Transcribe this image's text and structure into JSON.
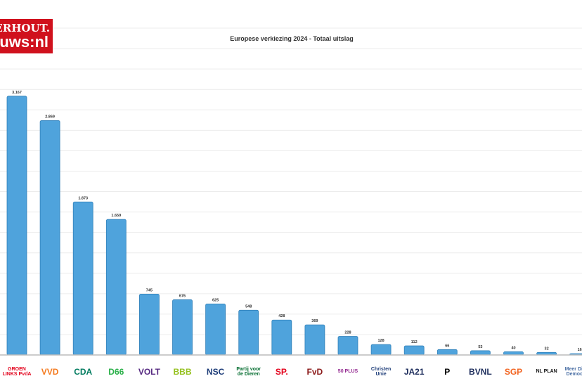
{
  "brand": {
    "line1": "ERHOUT.",
    "line2": "uws:nl",
    "color": "#d0111d"
  },
  "chart_data": {
    "type": "bar",
    "title": "Europese verkiezing 2024 - Totaal uitslag",
    "categories": [
      "GroenLinks-PvdA",
      "VVD",
      "CDA",
      "D66",
      "Volt",
      "BBB",
      "NSC",
      "Partij voor de Dieren",
      "SP",
      "Forum voor Democratie",
      "50PLUS",
      "ChristenUnie",
      "JA21",
      "Piratenpartij",
      "BVNL",
      "SGP",
      "NL Plan",
      "Meer Directe Democratie"
    ],
    "values": [
      3167,
      2869,
      1873,
      1659,
      745,
      676,
      625,
      548,
      428,
      369,
      228,
      128,
      112,
      66,
      53,
      40,
      32,
      16
    ],
    "labels": [
      "3.167",
      "2.869",
      "1.873",
      "1.659",
      "745",
      "676",
      "625",
      "548",
      "428",
      "369",
      "228",
      "128",
      "112",
      "66",
      "53",
      "40",
      "32",
      "16"
    ],
    "ylim": [
      0,
      4000
    ],
    "ytick_step": 250,
    "grid": true,
    "bar_color": "#4fa3dc",
    "xlabel": "",
    "ylabel": ""
  },
  "logos": [
    {
      "text": "GROEN LINKS PvdA",
      "color": "#e2001a"
    },
    {
      "text": "VVD",
      "color": "#f47b20"
    },
    {
      "text": "CDA",
      "color": "#007b5f"
    },
    {
      "text": "D66",
      "color": "#2bb04a"
    },
    {
      "text": "VOLT",
      "color": "#582c83"
    },
    {
      "text": "BBB",
      "color": "#95c11f"
    },
    {
      "text": "NSC",
      "color": "#1d3c78"
    },
    {
      "text": "Partij voor de Dieren",
      "color": "#006b2d"
    },
    {
      "text": "SP.",
      "color": "#e3001b"
    },
    {
      "text": "FvD",
      "color": "#8b1a1a"
    },
    {
      "text": "50 PLUS",
      "color": "#92278f"
    },
    {
      "text": "Christen Unie",
      "color": "#1d3c78"
    },
    {
      "text": "JA21",
      "color": "#1d2d5c"
    },
    {
      "text": "P",
      "color": "#000000"
    },
    {
      "text": "BVNL",
      "color": "#1d2d5c"
    },
    {
      "text": "SGP",
      "color": "#f26522"
    },
    {
      "text": "NL PLAN",
      "color": "#111111"
    },
    {
      "text": "Meer Directe Democratie",
      "color": "#4a6fa5"
    }
  ]
}
